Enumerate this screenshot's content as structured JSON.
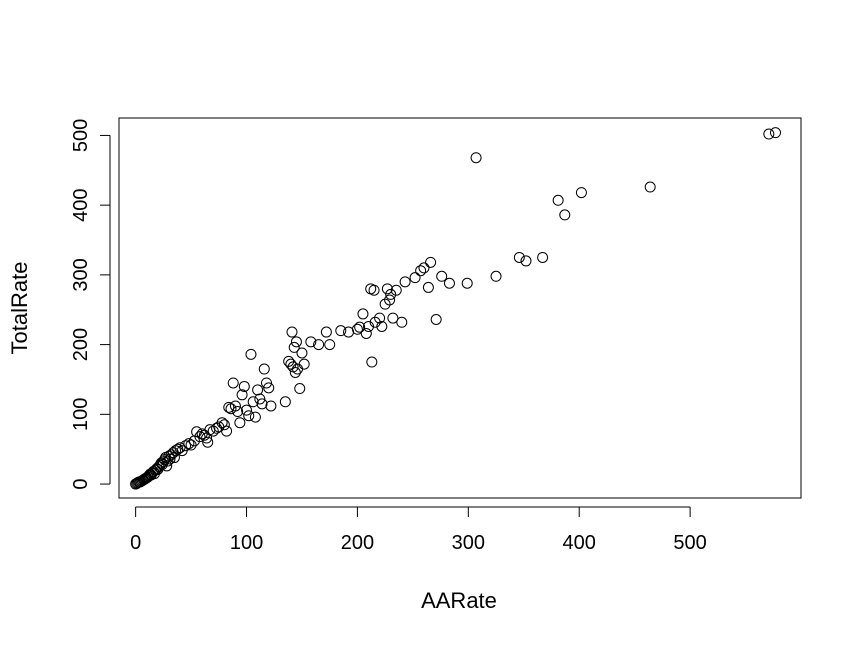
{
  "chart_data": {
    "type": "scatter",
    "title": "",
    "xlabel": "AARate",
    "ylabel": "TotalRate",
    "xlim": [
      -15,
      600
    ],
    "ylim": [
      -20,
      525
    ],
    "x_ticks": [
      0,
      100,
      200,
      300,
      400,
      500
    ],
    "y_ticks": [
      0,
      100,
      200,
      300,
      400,
      500
    ],
    "x_tick_labels": [
      "0",
      "100",
      "200",
      "300",
      "400",
      "500"
    ],
    "y_tick_labels": [
      "0",
      "100",
      "200",
      "300",
      "400",
      "500"
    ],
    "grid": false,
    "legend": "none",
    "marker": "open-circle",
    "point_color": "#000000",
    "series": [
      {
        "points": [
          [
            0,
            0
          ],
          [
            1,
            1
          ],
          [
            2,
            2
          ],
          [
            3,
            3
          ],
          [
            4,
            3
          ],
          [
            5,
            4
          ],
          [
            6,
            5
          ],
          [
            7,
            6
          ],
          [
            8,
            7
          ],
          [
            9,
            8
          ],
          [
            10,
            9
          ],
          [
            11,
            10
          ],
          [
            12,
            12
          ],
          [
            13,
            14
          ],
          [
            14,
            13
          ],
          [
            15,
            16
          ],
          [
            16,
            18
          ],
          [
            17,
            15
          ],
          [
            18,
            20
          ],
          [
            19,
            22
          ],
          [
            20,
            21
          ],
          [
            21,
            25
          ],
          [
            22,
            27
          ],
          [
            23,
            30
          ],
          [
            24,
            28
          ],
          [
            25,
            32
          ],
          [
            26,
            35
          ],
          [
            27,
            38
          ],
          [
            28,
            26
          ],
          [
            29,
            33
          ],
          [
            30,
            40
          ],
          [
            31,
            36
          ],
          [
            32,
            42
          ],
          [
            34,
            45
          ],
          [
            35,
            38
          ],
          [
            36,
            48
          ],
          [
            38,
            50
          ],
          [
            40,
            52
          ],
          [
            42,
            48
          ],
          [
            45,
            55
          ],
          [
            48,
            58
          ],
          [
            50,
            56
          ],
          [
            53,
            62
          ],
          [
            55,
            75
          ],
          [
            58,
            68
          ],
          [
            60,
            72
          ],
          [
            62,
            70
          ],
          [
            64,
            66
          ],
          [
            65,
            60
          ],
          [
            67,
            78
          ],
          [
            70,
            76
          ],
          [
            73,
            80
          ],
          [
            75,
            82
          ],
          [
            78,
            88
          ],
          [
            80,
            85
          ],
          [
            82,
            76
          ],
          [
            84,
            110
          ],
          [
            86,
            108
          ],
          [
            88,
            145
          ],
          [
            90,
            112
          ],
          [
            92,
            104
          ],
          [
            94,
            88
          ],
          [
            96,
            128
          ],
          [
            98,
            140
          ],
          [
            100,
            106
          ],
          [
            102,
            98
          ],
          [
            104,
            186
          ],
          [
            106,
            118
          ],
          [
            108,
            96
          ],
          [
            110,
            135
          ],
          [
            112,
            122
          ],
          [
            114,
            115
          ],
          [
            116,
            165
          ],
          [
            118,
            145
          ],
          [
            120,
            138
          ],
          [
            122,
            112
          ],
          [
            135,
            118
          ],
          [
            138,
            176
          ],
          [
            140,
            172
          ],
          [
            141,
            218
          ],
          [
            142,
            168
          ],
          [
            143,
            196
          ],
          [
            144,
            160
          ],
          [
            145,
            204
          ],
          [
            146,
            165
          ],
          [
            148,
            137
          ],
          [
            150,
            188
          ],
          [
            152,
            172
          ],
          [
            158,
            204
          ],
          [
            165,
            200
          ],
          [
            172,
            218
          ],
          [
            175,
            200
          ],
          [
            185,
            220
          ],
          [
            192,
            218
          ],
          [
            200,
            222
          ],
          [
            202,
            225
          ],
          [
            205,
            244
          ],
          [
            208,
            216
          ],
          [
            210,
            226
          ],
          [
            212,
            280
          ],
          [
            213,
            175
          ],
          [
            215,
            278
          ],
          [
            216,
            232
          ],
          [
            220,
            238
          ],
          [
            222,
            226
          ],
          [
            225,
            258
          ],
          [
            227,
            280
          ],
          [
            229,
            264
          ],
          [
            230,
            272
          ],
          [
            232,
            238
          ],
          [
            235,
            278
          ],
          [
            240,
            232
          ],
          [
            243,
            290
          ],
          [
            252,
            296
          ],
          [
            257,
            306
          ],
          [
            260,
            310
          ],
          [
            264,
            282
          ],
          [
            266,
            318
          ],
          [
            271,
            236
          ],
          [
            276,
            298
          ],
          [
            283,
            288
          ],
          [
            299,
            288
          ],
          [
            307,
            468
          ],
          [
            325,
            298
          ],
          [
            346,
            325
          ],
          [
            352,
            320
          ],
          [
            367,
            325
          ],
          [
            381,
            407
          ],
          [
            387,
            386
          ],
          [
            402,
            418
          ],
          [
            464,
            426
          ],
          [
            571,
            502
          ],
          [
            577,
            504
          ]
        ]
      }
    ]
  }
}
